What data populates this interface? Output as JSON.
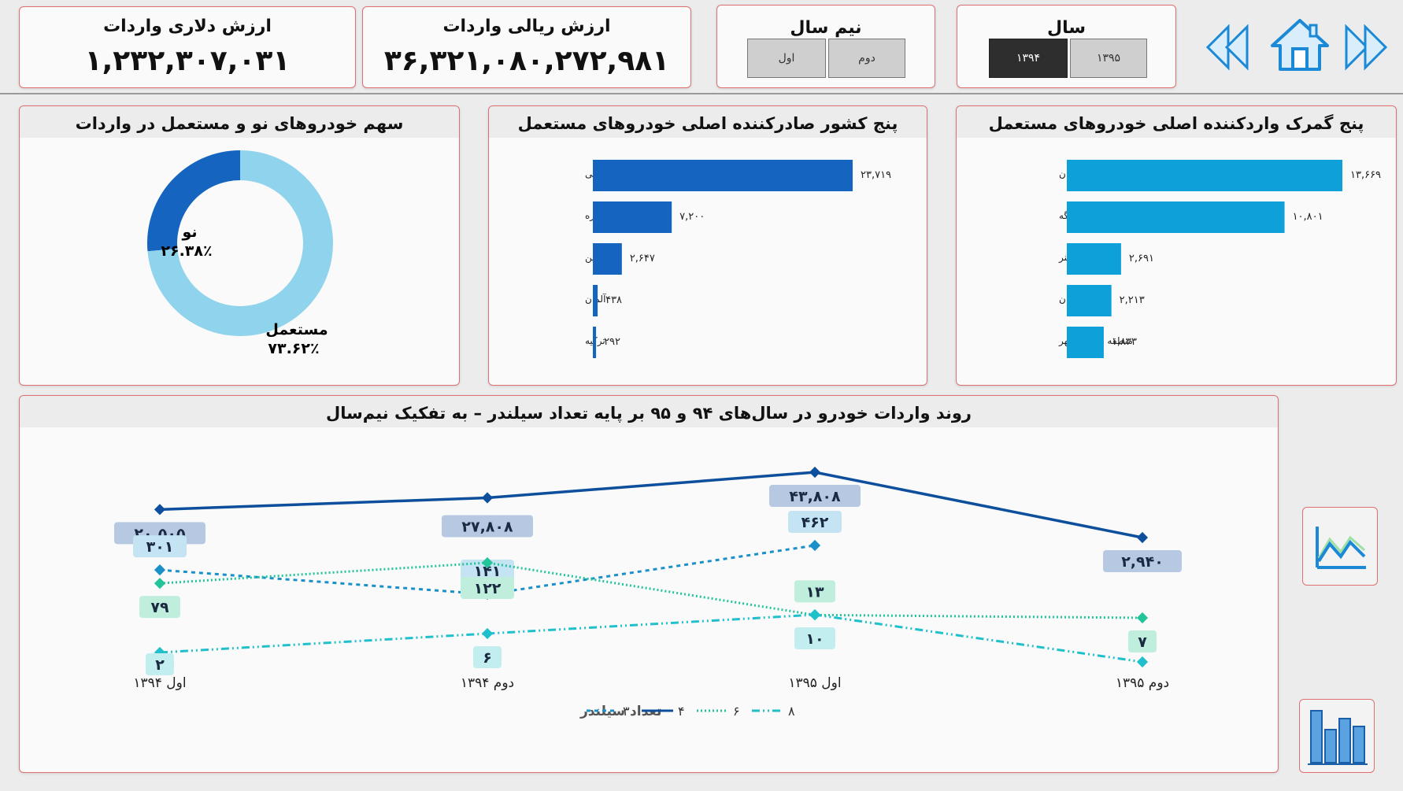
{
  "kpis": {
    "dollar_title": "ارزش دلاری واردات",
    "dollar_value": "۱,۲۳۲,۳۰۷,۰۳۱",
    "rial_title": "ارزش ریالی واردات",
    "rial_value": "۳۶,۳۲۱,۰۸۰,۲۷۲,۹۸۱"
  },
  "half_year_slicer": {
    "title": "نیم سال",
    "options": [
      "دوم",
      "اول"
    ],
    "selected": null
  },
  "year_slicer": {
    "title": "سال",
    "options": [
      "۱۳۹۴",
      "۱۳۹۵"
    ],
    "selected": "۱۳۹۴"
  },
  "nav": {
    "icons": [
      "prev-icon",
      "home-icon",
      "next-icon"
    ]
  },
  "donut": {
    "title": "سهم خودروهای نو و مستعمل در واردات",
    "slices": [
      {
        "label": "نو",
        "pct_label": "۲۶.۳۸٪",
        "value": 26.38,
        "color": "#1565c0"
      },
      {
        "label": "مستعمل",
        "pct_label": "۷۳.۶۲٪",
        "value": 73.62,
        "color": "#8fd3ec"
      }
    ]
  },
  "countries": {
    "title": "پنج کشور صادرکننده اصلی خودروهای مستعمل",
    "color": "#1565c0",
    "items": [
      {
        "label": "امارات متحده عربی",
        "value": 23719,
        "value_label": "۲۳,۷۱۹"
      },
      {
        "label": "جمهوری کره",
        "value": 7200,
        "value_label": "۷,۲۰۰"
      },
      {
        "label": "چین",
        "value": 2647,
        "value_label": "۲,۶۴۷"
      },
      {
        "label": "آلمان",
        "value": 438,
        "value_label": "۴۳۸"
      },
      {
        "label": "ترکیه",
        "value": 292,
        "value_label": "۲۹۲"
      }
    ]
  },
  "customs": {
    "title": "پنج گمرک واردکننده اصلی خودروهای مستعمل",
    "color": "#0ea1d9",
    "items": [
      {
        "label": "منطقه ویژه سلفچگان",
        "value": 13669,
        "value_label": "۱۳,۶۶۹"
      },
      {
        "label": "بندر لنگه",
        "value": 10801,
        "value_label": "۱۰,۸۰۱"
      },
      {
        "label": "گمرک باهنر",
        "value": 2691,
        "value_label": "۲,۶۹۱"
      },
      {
        "label": "تهران",
        "value": 2213,
        "value_label": "۲,۲۱۳"
      },
      {
        "label": "منطقه ویژه بوشهر",
        "value": 1833,
        "value_label": "۱,۸۳۳"
      }
    ]
  },
  "trend": {
    "title": "روند واردات خودرو در سال‌های ۹۴ و ۹۵ بر پایه تعداد سیلندر – به تفکیک نیم‌سال",
    "categories": [
      "اول ۱۳۹۴",
      "دوم ۱۳۹۴",
      "اول ۱۳۹۵",
      "دوم ۱۳۹۵"
    ],
    "legend_title": "تعداد سیلندر",
    "series": [
      {
        "name": "۴",
        "color": "#0d4f9c",
        "dash": "",
        "label_bg": "#b7c9e2",
        "values": [
          20505,
          27808,
          43808,
          2940
        ],
        "labels": [
          "۲۰,۵۰۵",
          "۲۷,۸۰۸",
          "۴۳,۸۰۸",
          "۲,۹۴۰"
        ]
      },
      {
        "name": "۳",
        "color": "#1a90c8",
        "dash": "5,5",
        "label_bg": "#c4e4f3",
        "values": [
          301,
          141,
          462
        ],
        "labels": [
          "۳۰۱",
          "۱۴۱",
          "۴۶۲"
        ]
      },
      {
        "name": "۶",
        "color": "#22c49a",
        "dash": "2,3",
        "label_bg": "#bfeedd",
        "values": [
          79,
          122,
          13,
          7
        ],
        "labels": [
          "۷۹",
          "۱۲۲",
          "۱۳",
          "۷"
        ]
      },
      {
        "name": "۸",
        "color": "#1fc0cc",
        "dash": "10,4,2,4,2,4",
        "label_bg": "#c3eef0",
        "values": [
          2,
          6,
          10,
          0
        ],
        "labels": [
          "۲",
          "۶",
          "۱۰",
          ""
        ]
      }
    ]
  },
  "side_buttons": [
    "line-chart-icon",
    "bar-chart-icon"
  ]
}
